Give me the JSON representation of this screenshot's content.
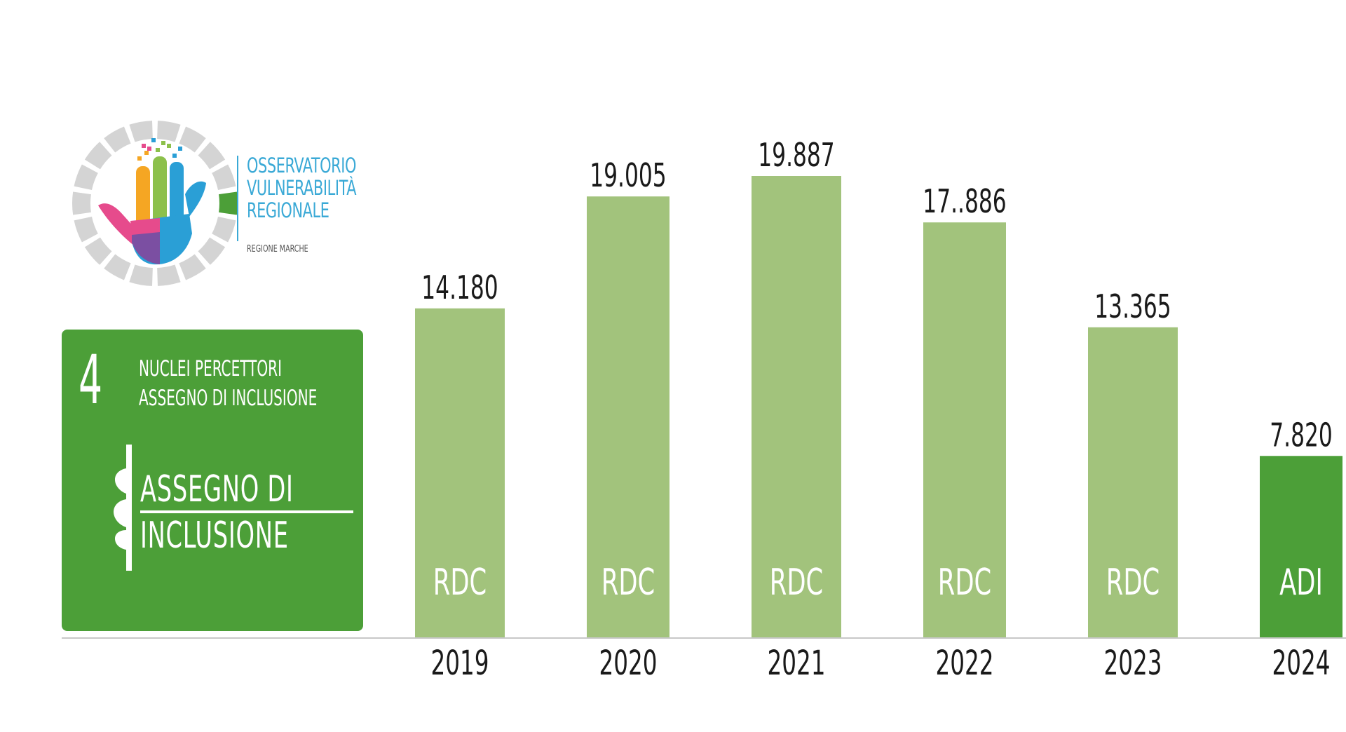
{
  "logo": {
    "name_lines": [
      "OSSERVATORIO",
      "VULNERABILITÀ",
      "REGIONALE"
    ],
    "subtitle": "REGIONE MARCHE",
    "icon": "hand-in-ring-logo-icon"
  },
  "card": {
    "number": "4",
    "subtitle_lines": [
      "NUCLEI PERCETTORI",
      "ASSEGNO DI INCLUSIONE"
    ],
    "big_lines": [
      "ASSEGNO DI",
      "INCLUSIONE"
    ],
    "icon": "puzzle-edge-icon",
    "color": "#4c9f38"
  },
  "chart_data": {
    "type": "bar",
    "categories": [
      "2019",
      "2020",
      "2021",
      "2022",
      "2023",
      "2024"
    ],
    "values": [
      14180,
      19005,
      19887,
      17886,
      13365,
      7820
    ],
    "value_labels": [
      "14.180",
      "19.005",
      "19.887",
      "17..886",
      "13.365",
      "7.820"
    ],
    "bar_labels": [
      "RDC",
      "RDC",
      "RDC",
      "RDC",
      "RDC",
      "ADI"
    ],
    "colors": [
      "#a2c37c",
      "#a2c37c",
      "#a2c37c",
      "#a2c37c",
      "#a2c37c",
      "#4c9f38"
    ],
    "ylim": [
      0,
      19887
    ],
    "grid": false,
    "title": "",
    "xlabel": "",
    "ylabel": ""
  }
}
